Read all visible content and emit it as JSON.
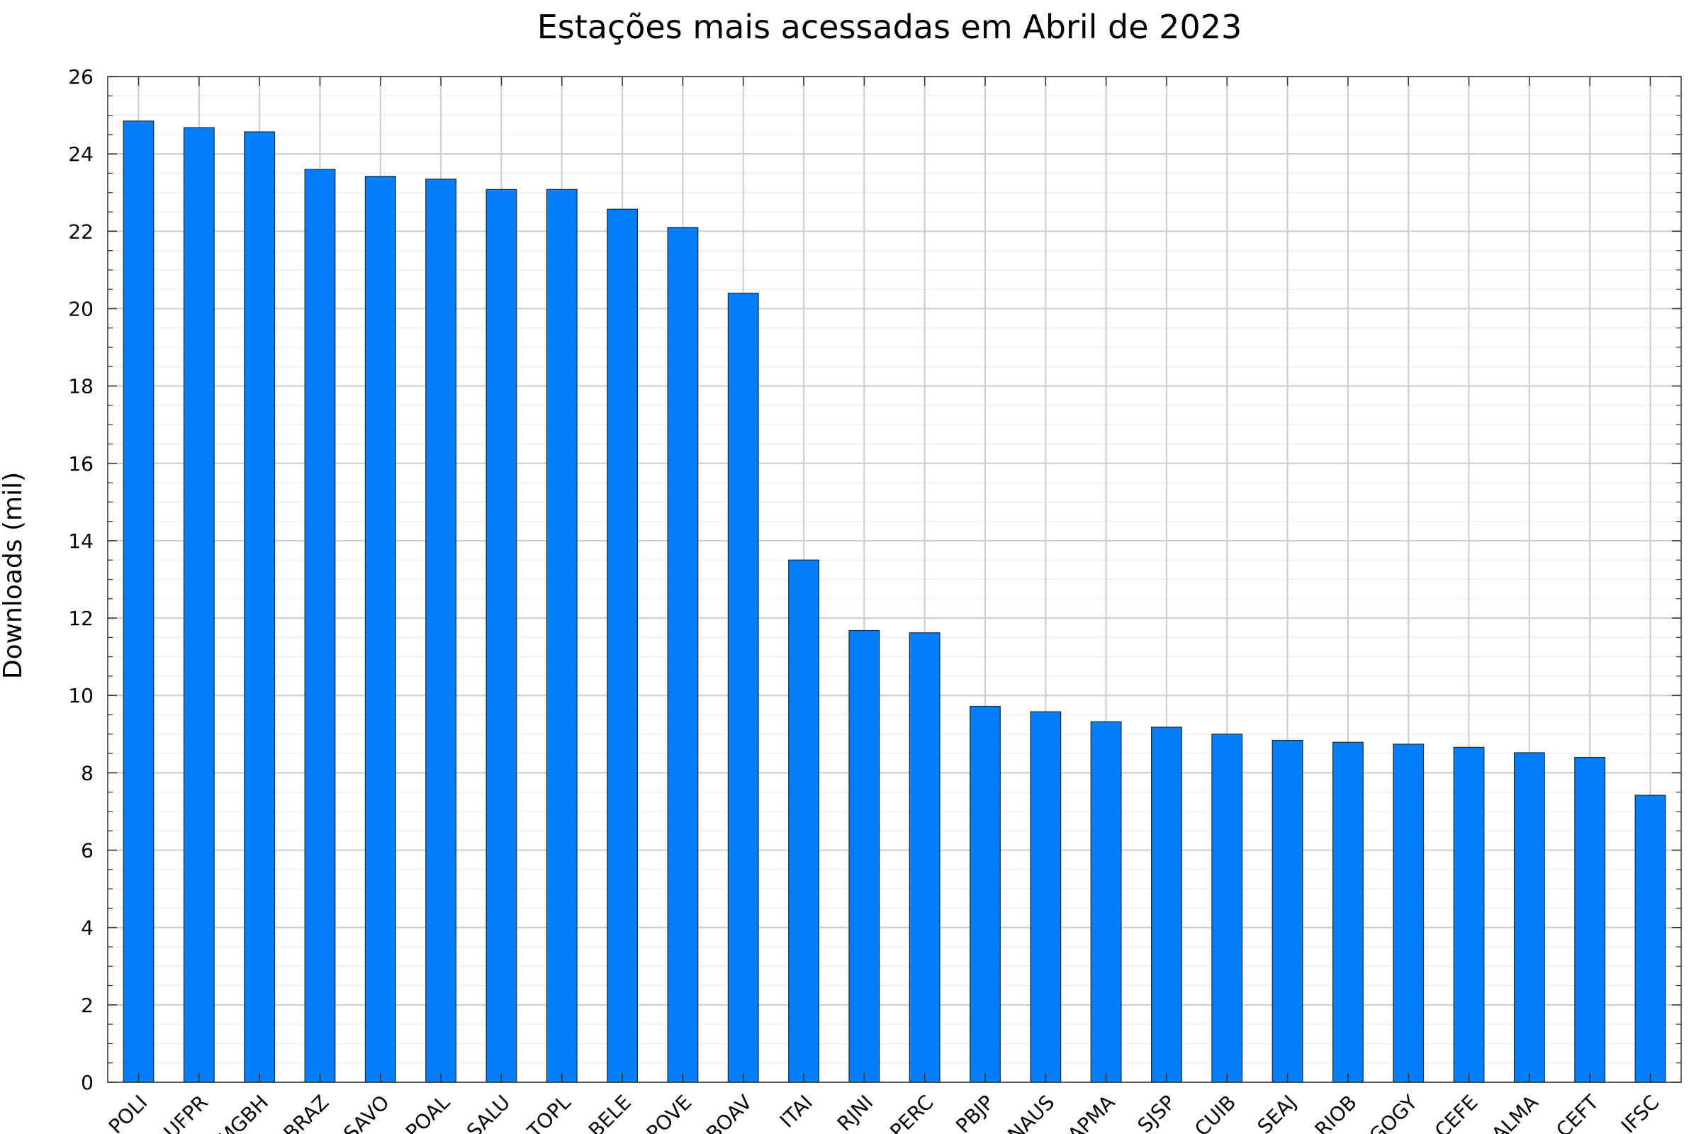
{
  "chart_data": {
    "type": "bar",
    "title": "Estações mais acessadas em Abril de 2023",
    "ylabel": "Downloads (mil)",
    "xlabel": "",
    "ylim": [
      0,
      26
    ],
    "yticks": [
      "0",
      "2",
      "4",
      "6",
      "8",
      "10",
      "12",
      "14",
      "16",
      "18",
      "20",
      "22",
      "24",
      "26"
    ],
    "grid": true,
    "bar_color": "#037FFE",
    "categories": [
      "POLI",
      "UFPR",
      "MGBH",
      "BRAZ",
      "SAVO",
      "POAL",
      "SALU",
      "TOPL",
      "BELE",
      "POVE",
      "BOAV",
      "ITAI",
      "RJNI",
      "PERC",
      "PBJP",
      "NAUS",
      "APMA",
      "SJSP",
      "CUIB",
      "SEAJ",
      "RIOB",
      "GOGY",
      "CEFE",
      "ALMA",
      "CEFT",
      "IFSC"
    ],
    "values": [
      24.85,
      24.68,
      24.57,
      23.6,
      23.42,
      23.35,
      23.08,
      23.08,
      22.57,
      22.1,
      20.4,
      13.5,
      11.68,
      11.62,
      9.72,
      9.58,
      9.32,
      9.18,
      9.0,
      8.84,
      8.79,
      8.74,
      8.66,
      8.52,
      8.4,
      7.42
    ]
  }
}
